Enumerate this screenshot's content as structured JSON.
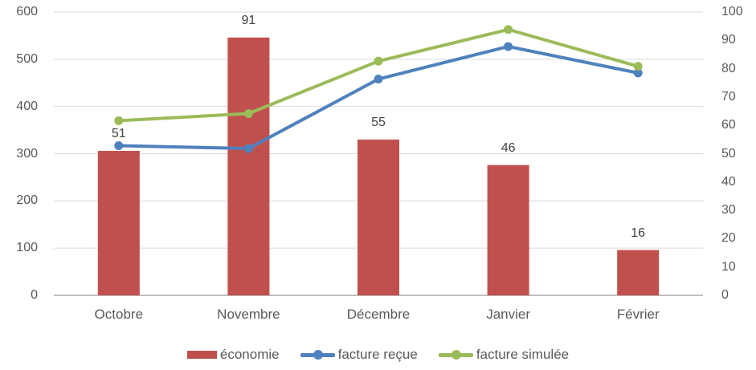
{
  "chart_data": {
    "type": "combo-bar-line",
    "title": "",
    "categories": [
      "Octobre",
      "Novembre",
      "Décembre",
      "Janvier",
      "Février"
    ],
    "series": [
      {
        "name": "économie",
        "type": "bar",
        "axis": "right",
        "color": "#C0504D",
        "values": [
          51,
          91,
          55,
          46,
          16
        ],
        "data_labels_shown": true
      },
      {
        "name": "facture reçue",
        "type": "line",
        "axis": "left",
        "color": "#4F81BD",
        "values": [
          317,
          311,
          458,
          527,
          471
        ],
        "data_labels_shown": false
      },
      {
        "name": "facture simulée",
        "type": "line",
        "axis": "left",
        "color": "#9BBB59",
        "values": [
          370,
          385,
          496,
          563,
          485
        ],
        "data_labels_shown": false
      }
    ],
    "left_axis": {
      "min": 0,
      "max": 600,
      "step": 100,
      "ticks": [
        "0",
        "100",
        "200",
        "300",
        "400",
        "500",
        "600"
      ]
    },
    "right_axis": {
      "min": 0,
      "max": 100,
      "step": 10,
      "ticks": [
        "0",
        "10",
        "20",
        "30",
        "40",
        "50",
        "60",
        "70",
        "80",
        "90",
        "100"
      ]
    },
    "grid": true,
    "legend_position": "bottom"
  },
  "colors": {
    "background": "#FFFFFF",
    "grid_line": "#D9D9D9",
    "axis_line": "#BFBFBF",
    "axis_text": "#595959",
    "data_label_text": "#404040",
    "bar": "#C0504D",
    "line_blue": "#4F81BD",
    "line_green": "#9BBB59"
  }
}
